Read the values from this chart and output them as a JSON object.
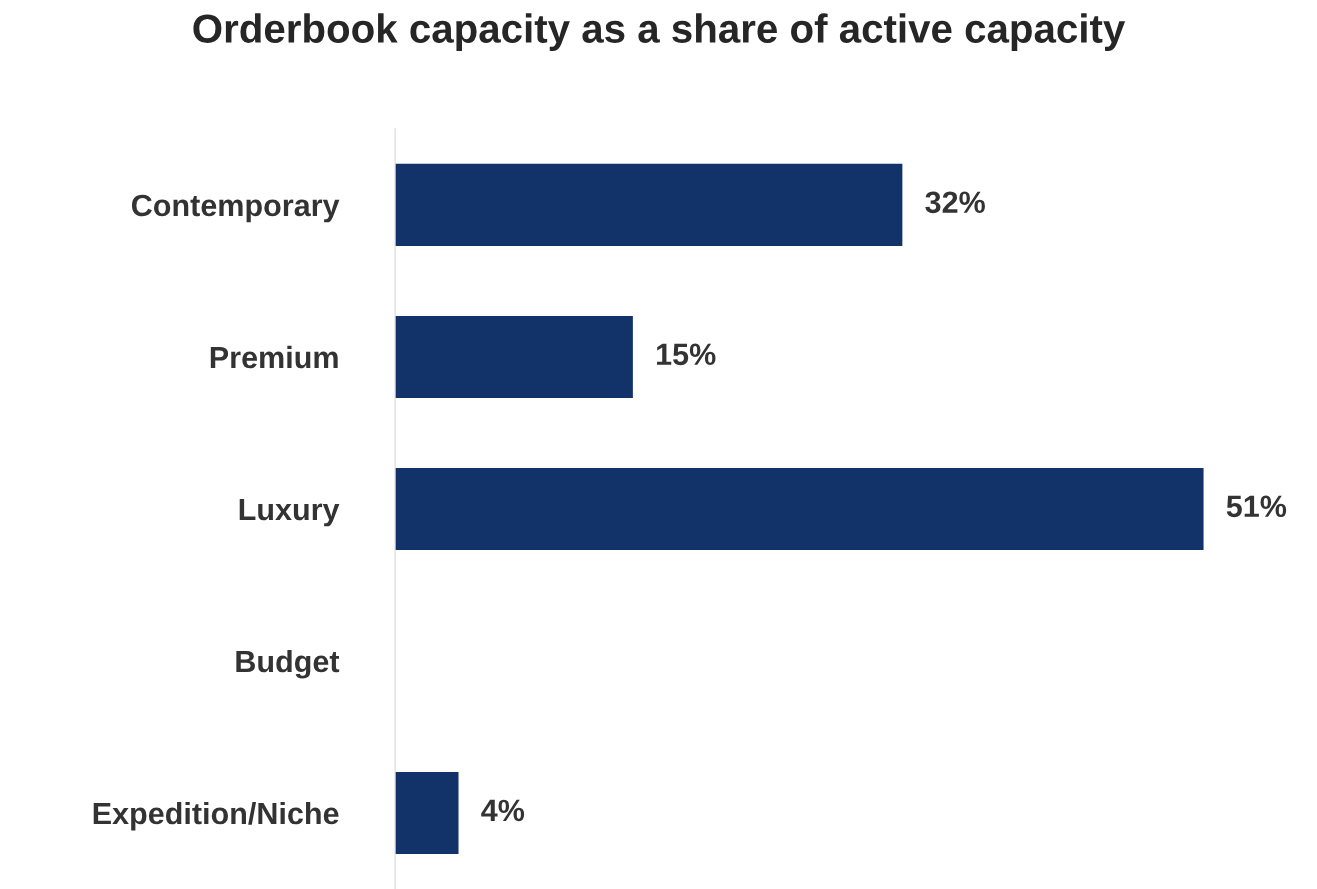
{
  "chart_data": {
    "type": "bar",
    "orientation": "horizontal",
    "title": "Orderbook capacity as a share of active capacity",
    "categories": [
      "Contemporary",
      "Premium",
      "Luxury",
      "Budget",
      "Expedition/Niche"
    ],
    "values": [
      32,
      15,
      51,
      0,
      4
    ],
    "value_labels": [
      "32%",
      "15%",
      "51%",
      null,
      "4%"
    ],
    "color": "#12336a",
    "grid": false,
    "legend": false
  }
}
